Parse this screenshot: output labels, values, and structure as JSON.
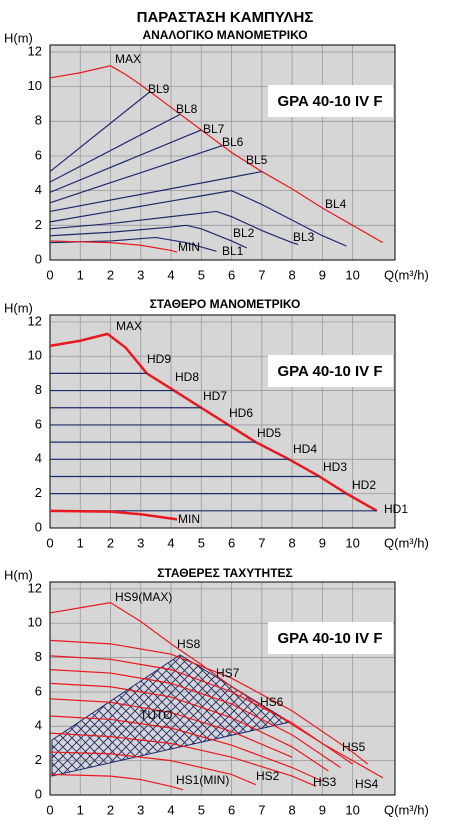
{
  "chart_data": [
    {
      "type": "line",
      "title": "ΠΑΡΑΣΤΑΣΗ ΚΑΜΠΥΛΗΣ",
      "subtitle": "ΑΝΑΛΟΓΙΚΟ ΜΑΝΟΜΕΤΡΙΚΟ",
      "model_label": "GPA 40-10 IV F",
      "y_label": "H(m)",
      "x_label": "Q(m³/h)",
      "xlim": [
        0,
        11.4
      ],
      "ylim": [
        0,
        12.4
      ],
      "xticks": [
        0,
        1,
        2,
        3,
        4,
        5,
        6,
        7,
        8,
        9,
        10
      ],
      "yticks": [
        0,
        2,
        4,
        6,
        8,
        10,
        12
      ],
      "grid": true,
      "series": [
        {
          "name": "MAX",
          "color": "#e8191f",
          "x": [
            0,
            1,
            2,
            2.5,
            3,
            4,
            5,
            6,
            7,
            8,
            9,
            10,
            11
          ],
          "values": [
            10.5,
            10.8,
            11.2,
            10.7,
            10.1,
            8.8,
            7.5,
            6.2,
            5.1,
            4.1,
            3.0,
            2.0,
            1.0
          ]
        },
        {
          "name": "BL9",
          "color": "#1f2a6b",
          "x": [
            0,
            3.3
          ],
          "values": [
            5.1,
            9.7
          ]
        },
        {
          "name": "BL8",
          "color": "#1f2a6b",
          "x": [
            0,
            4.3
          ],
          "values": [
            4.5,
            8.4
          ]
        },
        {
          "name": "BL7",
          "color": "#1f2a6b",
          "x": [
            0,
            5
          ],
          "values": [
            3.9,
            7.5
          ]
        },
        {
          "name": "BL6",
          "color": "#1f2a6b",
          "x": [
            0,
            5.7
          ],
          "values": [
            3.3,
            6.6
          ]
        },
        {
          "name": "BL5",
          "color": "#1f2a6b",
          "x": [
            0,
            7
          ],
          "values": [
            2.8,
            5.1
          ]
        },
        {
          "name": "BL4",
          "color": "#1f2a6b",
          "x": [
            0,
            2,
            4,
            5,
            6,
            7,
            8,
            9,
            9.8
          ],
          "values": [
            2.2,
            2.8,
            3.4,
            3.7,
            4.0,
            3.2,
            2.3,
            1.4,
            0.8
          ]
        },
        {
          "name": "BL3",
          "color": "#1f2a6b",
          "x": [
            0,
            2,
            4,
            5,
            5.5,
            6,
            7,
            8,
            8.2
          ],
          "values": [
            1.8,
            2.1,
            2.5,
            2.7,
            2.8,
            2.5,
            1.7,
            1.0,
            0.9
          ]
        },
        {
          "name": "BL2",
          "color": "#1f2a6b",
          "x": [
            0,
            2,
            4,
            4.5,
            5,
            6,
            6.5
          ],
          "values": [
            1.4,
            1.6,
            1.9,
            2.0,
            1.8,
            1.1,
            0.7
          ]
        },
        {
          "name": "BL1",
          "color": "#1f2a6b",
          "x": [
            0,
            2,
            3.5,
            4.5,
            5.5
          ],
          "values": [
            1.0,
            1.1,
            1.3,
            1.0,
            0.5
          ]
        },
        {
          "name": "MIN",
          "color": "#e8191f",
          "x": [
            0,
            1,
            2,
            3,
            4,
            4.2
          ],
          "values": [
            1.1,
            1.05,
            1.0,
            0.85,
            0.55,
            0.45
          ]
        }
      ]
    },
    {
      "type": "line",
      "title": "ΣΤΑΘΕΡΟ ΜΑΝΟΜΕΤΡΙΚΟ",
      "model_label": "GPA 40-10 IV F",
      "y_label": "H(m)",
      "x_label": "Q(m³/h)",
      "xlim": [
        0,
        11.4
      ],
      "ylim": [
        0,
        12.4
      ],
      "xticks": [
        0,
        1,
        2,
        3,
        4,
        5,
        6,
        7,
        8,
        9,
        10
      ],
      "yticks": [
        0,
        2,
        4,
        6,
        8,
        10,
        12
      ],
      "grid": true,
      "series": [
        {
          "name": "MAX",
          "color": "#e8191f",
          "linewidth": 2.5,
          "x": [
            0,
            1,
            1.9,
            2.5,
            3.2,
            4.1,
            5,
            5.9,
            6.8,
            7.9,
            8.9,
            9.8,
            10.8
          ],
          "values": [
            10.6,
            10.9,
            11.3,
            10.5,
            9,
            8,
            7,
            6,
            5,
            4,
            3,
            2,
            1
          ]
        },
        {
          "name": "HD9",
          "color": "#1f2a6b",
          "x": [
            0,
            3.2
          ],
          "values": [
            9,
            9
          ]
        },
        {
          "name": "HD8",
          "color": "#1f2a6b",
          "x": [
            0,
            4.1
          ],
          "values": [
            8,
            8
          ]
        },
        {
          "name": "HD7",
          "color": "#1f2a6b",
          "x": [
            0,
            5
          ],
          "values": [
            7,
            7
          ]
        },
        {
          "name": "HD6",
          "color": "#1f2a6b",
          "x": [
            0,
            5.9
          ],
          "values": [
            6,
            6
          ]
        },
        {
          "name": "HD5",
          "color": "#1f2a6b",
          "x": [
            0,
            6.8
          ],
          "values": [
            5,
            5
          ]
        },
        {
          "name": "HD4",
          "color": "#1f2a6b",
          "x": [
            0,
            7.9
          ],
          "values": [
            4,
            4
          ]
        },
        {
          "name": "HD3",
          "color": "#1f2a6b",
          "x": [
            0,
            8.9
          ],
          "values": [
            3,
            3
          ]
        },
        {
          "name": "HD2",
          "color": "#1f2a6b",
          "x": [
            0,
            9.8
          ],
          "values": [
            2,
            2
          ]
        },
        {
          "name": "HD1",
          "color": "#1f2a6b",
          "x": [
            0,
            10.8
          ],
          "values": [
            1,
            1
          ]
        },
        {
          "name": "MIN",
          "color": "#e8191f",
          "linewidth": 2.5,
          "x": [
            0,
            2,
            3,
            4.2
          ],
          "values": [
            1.0,
            0.95,
            0.8,
            0.5
          ]
        }
      ]
    },
    {
      "type": "line",
      "title": "ΣΤΑΘΕΡΕΣ ΤΑΧΥΤΗΤΕΣ",
      "model_label": "GPA 40-10 IV F",
      "y_label": "H(m)",
      "x_label": "Q(m³/h)",
      "xlim": [
        0,
        11.4
      ],
      "ylim": [
        0,
        12.4
      ],
      "xticks": [
        0,
        1,
        2,
        3,
        4,
        5,
        6,
        7,
        8,
        9,
        10
      ],
      "yticks": [
        0,
        2,
        4,
        6,
        8,
        10,
        12
      ],
      "grid": true,
      "series": [
        {
          "name": "HS9(MAX)",
          "color": "#e8191f",
          "x": [
            0,
            1,
            2,
            3,
            4,
            5,
            6,
            7,
            8,
            9,
            10,
            11
          ],
          "values": [
            10.6,
            10.9,
            11.2,
            10.1,
            8.8,
            7.6,
            6.3,
            5.2,
            4.1,
            3.0,
            2.0,
            1.0
          ]
        },
        {
          "name": "HS8",
          "color": "#e8191f",
          "x": [
            0,
            2,
            4,
            6,
            8,
            10,
            10.5
          ],
          "values": [
            9.0,
            8.8,
            8.2,
            6.8,
            4.9,
            2.5,
            1.8
          ]
        },
        {
          "name": "HS7",
          "color": "#e8191f",
          "x": [
            0,
            2,
            4,
            6,
            8,
            10
          ],
          "values": [
            8.1,
            7.9,
            7.3,
            6.0,
            4.2,
            1.8
          ]
        },
        {
          "name": "HS6",
          "color": "#e8191f",
          "x": [
            0,
            2,
            4,
            6,
            8,
            9.6
          ],
          "values": [
            7.3,
            7.1,
            6.5,
            5.3,
            3.5,
            1.6
          ]
        },
        {
          "name": "TUTO",
          "color": "#e8191f",
          "x": [
            0,
            2,
            4,
            6,
            8
          ],
          "values": [
            5.6,
            5.4,
            4.8,
            3.7,
            2.2
          ]
        },
        {
          "name": "HS5",
          "color": "#e8191f",
          "x": [
            0,
            2,
            4,
            6,
            8,
            9.2
          ],
          "values": [
            6.5,
            6.3,
            5.7,
            4.5,
            2.8,
            1.4
          ]
        },
        {
          "name": "HS4",
          "color": "#e8191f",
          "x": [
            0,
            2,
            4,
            6,
            8,
            9
          ],
          "values": [
            4.6,
            4.4,
            3.9,
            2.9,
            1.6,
            0.8
          ]
        },
        {
          "name": "HS3",
          "color": "#e8191f",
          "x": [
            0,
            2,
            4,
            6,
            8,
            8.8
          ],
          "values": [
            3.6,
            3.4,
            3.0,
            2.2,
            1.1,
            0.5
          ]
        },
        {
          "name": "HS2",
          "color": "#e8191f",
          "x": [
            0,
            2,
            4,
            6,
            6.8
          ],
          "values": [
            2.5,
            2.4,
            2.0,
            1.2,
            0.6
          ]
        },
        {
          "name": "HS1(MIN)",
          "color": "#e8191f",
          "x": [
            0,
            2,
            3,
            4,
            4.4
          ],
          "values": [
            1.2,
            1.1,
            0.9,
            0.5,
            0.3
          ]
        }
      ]
    }
  ]
}
